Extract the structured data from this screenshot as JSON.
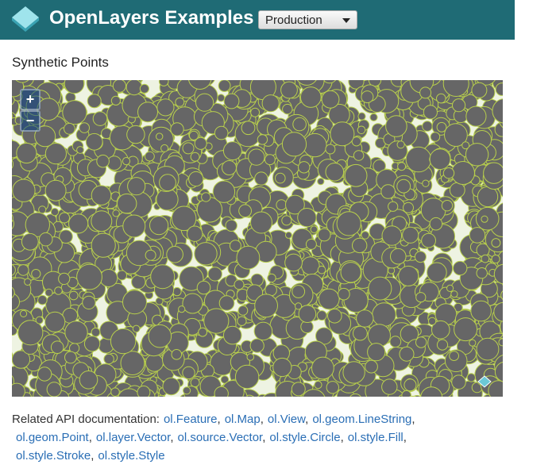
{
  "header": {
    "title": "OpenLayers Examples",
    "mode": "Production"
  },
  "example": {
    "title": "Synthetic Points",
    "zoom_in": "+",
    "zoom_out": "−"
  },
  "api": {
    "label": "Related API documentation:",
    "separator": ",",
    "lines": [
      [
        "ol.Feature",
        "ol.Map",
        "ol.View",
        "ol.geom.LineString"
      ],
      [
        "ol.geom.Point",
        "ol.layer.Vector",
        "ol.source.Vector",
        "ol.style.Circle",
        "ol.style.Fill"
      ],
      [
        "ol.style.Stroke",
        "ol.style.Style"
      ]
    ]
  }
}
